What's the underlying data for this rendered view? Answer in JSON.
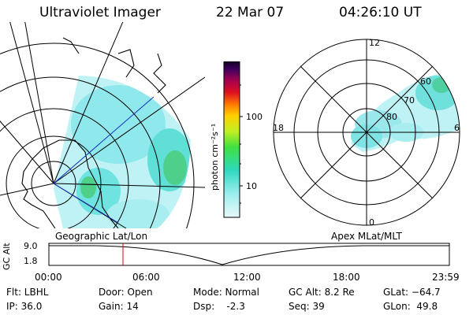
{
  "header": {
    "instrument": "Ultraviolet Imager",
    "date": "22 Mar 07",
    "time": "04:26:10 UT"
  },
  "colorbar": {
    "unit_label": "photon cm⁻²s⁻¹",
    "ticks": [
      "100",
      "10"
    ]
  },
  "polar_plot": {
    "mlt_labels": [
      "12",
      "18",
      "6",
      "0"
    ],
    "mlat_labels": [
      "60",
      "70",
      "80"
    ]
  },
  "left_map_label": "Geographic Lat/Lon",
  "right_map_label": "Apex MLat/MLT",
  "altitude_plot": {
    "ylabel": "GC Alt",
    "y_ticks": [
      "9.0",
      "1.8"
    ],
    "x_ticks": [
      "00:00",
      "06:00",
      "12:00",
      "18:00",
      "23:59"
    ],
    "marker_hour": 4.44
  },
  "status": {
    "filter": "Flt: LBHL",
    "ip": "IP: 36.0",
    "door": "Door: Open",
    "gain": "Gain: 14",
    "mode": "Mode: Normal",
    "dsp": "Dsp:    -2.3",
    "gc_alt": "GC Alt: 8.2 Re",
    "seq": "Seq: 39",
    "glat": "GLat: −64.7",
    "glon": "GLon:  49.8"
  }
}
